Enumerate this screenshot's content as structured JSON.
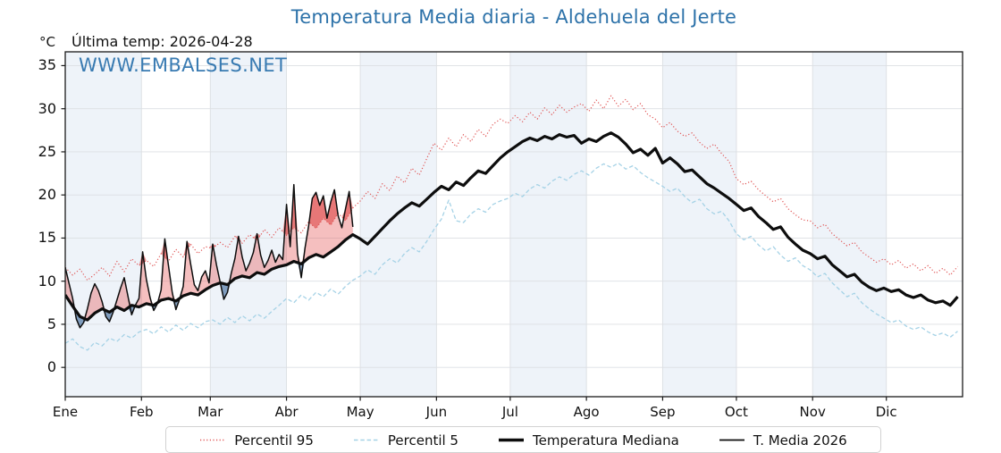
{
  "title": "Temperatura Media diaria - Aldehuela del Jerte",
  "annotations": {
    "unit_label": "°C",
    "last_temp_label": "Última temp: 2026-04-28",
    "watermark": "WWW.EMBALSES.NET"
  },
  "colors": {
    "title": "#2d72a9",
    "watermark": "#2f74ae",
    "p95_line": "#e05555",
    "p5_line": "#a5d2e6",
    "median_line": "#0d0d0d",
    "t2026_line": "#0d0d0d",
    "fill_above_median": "rgba(231,96,96,0.40)",
    "fill_above_p95": "rgba(217,48,48,0.50)",
    "fill_below_median": "rgba(54,98,148,0.60)",
    "month_band": "#eef3f9",
    "grid": "#dcdfe3",
    "spine": "#1a1a1a",
    "tick": "#1a1a1a"
  },
  "legend": {
    "items": [
      {
        "label": "Percentil 95"
      },
      {
        "label": "Percentil 5"
      },
      {
        "label": "Temperatura Mediana"
      },
      {
        "label": "T. Media 2026"
      }
    ]
  },
  "chart_data": {
    "type": "line",
    "title": "Temperatura Media diaria - Aldehuela del Jerte",
    "xlabel": "",
    "ylabel": "°C",
    "x_tick_labels": [
      "Ene",
      "Feb",
      "Mar",
      "Abr",
      "May",
      "Jun",
      "Jul",
      "Ago",
      "Sep",
      "Oct",
      "Nov",
      "Dic"
    ],
    "y_ticks": [
      0,
      5,
      10,
      15,
      20,
      25,
      30,
      35
    ],
    "ylim": [
      -3.4,
      36.6
    ],
    "x_range_days": [
      0,
      365
    ],
    "month_start_days": [
      0,
      31,
      59,
      90,
      120,
      151,
      181,
      212,
      243,
      273,
      304,
      334,
      365
    ],
    "shaded_month_indices": [
      0,
      2,
      4,
      6,
      8,
      10
    ],
    "grid": true,
    "legend_position": "bottom",
    "series": [
      {
        "name": "Percentil 95",
        "style": "dotted",
        "color": "#e05555",
        "width": 1.2,
        "start_day": 0,
        "step_days": 3,
        "values": [
          11.6,
          10.7,
          11.4,
          10.1,
          10.8,
          11.6,
          10.6,
          12.3,
          11.1,
          12.6,
          11.8,
          12.4,
          11.7,
          13.2,
          12.3,
          13.7,
          12.8,
          14.3,
          13.2,
          14.0,
          13.8,
          14.5,
          13.9,
          15.2,
          14.4,
          15.4,
          14.7,
          16.0,
          15.1,
          16.2,
          15.3,
          16.2,
          15.6,
          16.9,
          16.1,
          17.3,
          16.5,
          17.9,
          17.0,
          18.5,
          19.3,
          20.4,
          19.6,
          21.3,
          20.5,
          22.2,
          21.4,
          23.1,
          22.3,
          24.2,
          26.0,
          25.2,
          26.6,
          25.6,
          27.0,
          26.2,
          27.6,
          26.8,
          28.2,
          28.8,
          28.3,
          29.2,
          28.5,
          29.6,
          28.8,
          30.1,
          29.3,
          30.4,
          29.6,
          30.2,
          30.6,
          29.7,
          31.0,
          30.0,
          31.5,
          30.3,
          31.1,
          29.9,
          30.6,
          29.3,
          28.8,
          27.8,
          28.4,
          27.4,
          26.8,
          27.2,
          26.1,
          25.4,
          25.9,
          24.8,
          23.9,
          21.9,
          21.2,
          21.6,
          20.6,
          19.9,
          19.2,
          19.6,
          18.4,
          17.7,
          17.1,
          17.0,
          16.2,
          16.6,
          15.5,
          14.8,
          14.1,
          14.5,
          13.4,
          12.8,
          12.2,
          12.6,
          11.9,
          12.4,
          11.5,
          12.0,
          11.2,
          11.8,
          10.9,
          11.5,
          10.7,
          11.7
        ]
      },
      {
        "name": "Percentil 5",
        "style": "dashed",
        "color": "#a5d2e6",
        "width": 1.3,
        "start_day": 0,
        "step_days": 3,
        "values": [
          2.8,
          3.3,
          2.4,
          2.0,
          2.9,
          2.5,
          3.4,
          3.0,
          3.8,
          3.4,
          4.1,
          4.4,
          3.9,
          4.7,
          4.1,
          4.9,
          4.3,
          5.1,
          4.6,
          5.3,
          5.5,
          5.0,
          5.8,
          5.2,
          6.0,
          5.4,
          6.2,
          5.7,
          6.5,
          7.2,
          8.0,
          7.5,
          8.4,
          7.8,
          8.7,
          8.2,
          9.1,
          8.5,
          9.4,
          10.1,
          10.6,
          11.3,
          10.8,
          11.9,
          12.6,
          12.1,
          13.2,
          13.9,
          13.4,
          14.6,
          16.0,
          17.2,
          19.4,
          17.0,
          16.8,
          17.8,
          18.4,
          18.0,
          18.9,
          19.3,
          19.6,
          20.2,
          19.8,
          20.7,
          21.2,
          20.8,
          21.6,
          22.1,
          21.7,
          22.4,
          22.8,
          22.3,
          23.1,
          23.6,
          23.2,
          23.7,
          23.0,
          23.4,
          22.6,
          22.0,
          21.5,
          21.0,
          20.4,
          20.8,
          19.8,
          19.1,
          19.5,
          18.4,
          17.8,
          18.1,
          17.0,
          15.5,
          14.8,
          15.2,
          14.2,
          13.5,
          14.0,
          13.0,
          12.3,
          12.7,
          11.8,
          11.3,
          10.5,
          10.9,
          9.8,
          9.0,
          8.2,
          8.6,
          7.5,
          6.8,
          6.2,
          5.7,
          5.2,
          5.5,
          4.8,
          4.4,
          4.7,
          4.1,
          3.7,
          4.0,
          3.5,
          4.2
        ]
      },
      {
        "name": "Temperatura Mediana",
        "style": "solid",
        "color": "#0d0d0d",
        "width": 3.2,
        "start_day": 0,
        "step_days": 3,
        "values": [
          8.4,
          7.1,
          5.9,
          5.5,
          6.3,
          6.8,
          6.4,
          7.0,
          6.6,
          7.2,
          7.0,
          7.4,
          7.2,
          7.8,
          8.0,
          7.7,
          8.3,
          8.6,
          8.4,
          9.0,
          9.5,
          9.8,
          9.6,
          10.3,
          10.6,
          10.4,
          11.0,
          10.8,
          11.4,
          11.7,
          11.9,
          12.3,
          12.0,
          12.7,
          13.1,
          12.8,
          13.4,
          14.0,
          14.8,
          15.4,
          14.9,
          14.3,
          15.2,
          16.1,
          17.0,
          17.8,
          18.5,
          19.1,
          18.7,
          19.5,
          20.3,
          21.0,
          20.6,
          21.5,
          21.1,
          22.0,
          22.8,
          22.5,
          23.4,
          24.3,
          25.0,
          25.6,
          26.2,
          26.6,
          26.3,
          26.8,
          26.5,
          27.0,
          26.7,
          26.9,
          26.0,
          26.5,
          26.2,
          26.8,
          27.2,
          26.7,
          25.9,
          24.9,
          25.3,
          24.6,
          25.4,
          23.7,
          24.3,
          23.6,
          22.7,
          22.9,
          22.1,
          21.3,
          20.8,
          20.2,
          19.6,
          18.9,
          18.2,
          18.5,
          17.5,
          16.8,
          16.0,
          16.3,
          15.1,
          14.3,
          13.6,
          13.2,
          12.6,
          12.9,
          11.9,
          11.2,
          10.5,
          10.8,
          9.9,
          9.3,
          8.9,
          9.2,
          8.8,
          9.0,
          8.4,
          8.1,
          8.4,
          7.8,
          7.5,
          7.7,
          7.2,
          8.2
        ]
      },
      {
        "name": "T. Media 2026",
        "style": "solid",
        "color": "#0d0d0d",
        "width": 1.5,
        "start_day": 0,
        "step_days": 1.5,
        "values": [
          11.6,
          9.8,
          8.0,
          5.6,
          4.6,
          5.2,
          6.8,
          8.6,
          9.7,
          8.9,
          7.6,
          5.9,
          5.3,
          6.4,
          7.8,
          9.2,
          10.4,
          8.3,
          6.1,
          7.2,
          8.0,
          13.4,
          10.2,
          8.1,
          6.6,
          7.4,
          9.0,
          14.9,
          11.8,
          8.7,
          6.7,
          7.9,
          9.4,
          14.6,
          12.0,
          9.6,
          8.9,
          10.5,
          11.2,
          9.8,
          14.3,
          11.9,
          9.9,
          7.9,
          8.7,
          10.9,
          12.6,
          15.2,
          12.8,
          11.2,
          12.1,
          13.3,
          15.5,
          13.0,
          11.6,
          12.4,
          13.6,
          12.2,
          13.1,
          12.5,
          18.9,
          14.0,
          21.2,
          13.2,
          10.4,
          13.8,
          16.4,
          19.6,
          20.3,
          18.8,
          19.9,
          17.3,
          19.2,
          20.6,
          17.6,
          16.2,
          18.4,
          20.4,
          16.3
        ]
      }
    ]
  }
}
